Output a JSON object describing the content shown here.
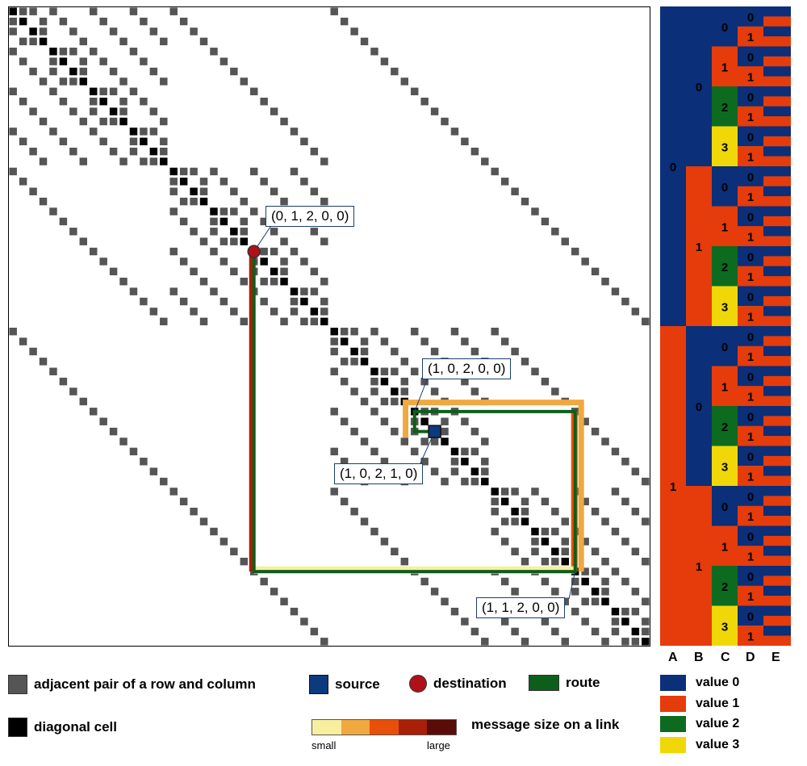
{
  "colors": {
    "adjacent": "#555555",
    "diagonal": "#000000",
    "source": "#0b3a7e",
    "destination": "#b0101a",
    "route": "#0d5e1a",
    "value0": "#0b2f78",
    "value1": "#e63b0a",
    "value2": "#0d6b1f",
    "value3": "#f0d808"
  },
  "annotations": {
    "dest_label": "(0, 1, 2, 0, 0)",
    "a1_label": "(1, 0, 2, 0, 0)",
    "source_label": "(1, 0, 2, 1, 0)",
    "a3_label": "(1, 1, 2, 0, 0)"
  },
  "sidebar": {
    "column_headers": [
      "A",
      "B",
      "C",
      "D",
      "E"
    ],
    "level_a": [
      "0",
      "1"
    ],
    "level_b": [
      "0",
      "1"
    ],
    "level_c": [
      "0",
      "1",
      "2",
      "3"
    ],
    "level_d": [
      "0",
      "1"
    ]
  },
  "legend": {
    "adjacent_label": "adjacent pair of a row and column",
    "diagonal_label": "diagonal cell",
    "source_label": "source",
    "destination_label": "destination",
    "route_label": "route",
    "message_label": "message size on a link",
    "scale_small": "small",
    "scale_large": "large",
    "scale_colors": [
      "#f7ef9e",
      "#f0a840",
      "#e8500a",
      "#a82008",
      "#5a0c06"
    ],
    "values": [
      {
        "label": "value 0",
        "color": "#0b2f78"
      },
      {
        "label": "value 1",
        "color": "#e63b0a"
      },
      {
        "label": "value 2",
        "color": "#0d6b1f"
      },
      {
        "label": "value 3",
        "color": "#f0d808"
      }
    ]
  }
}
